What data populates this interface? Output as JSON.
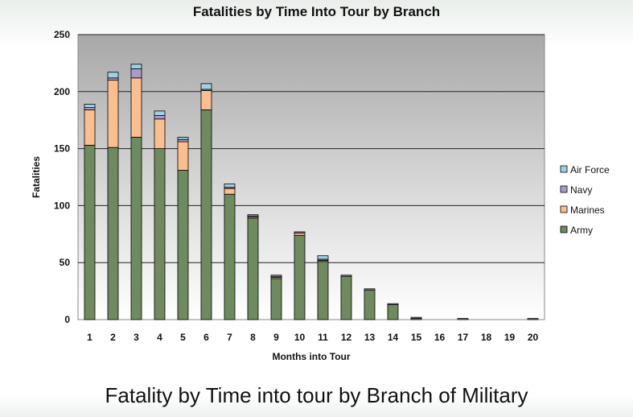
{
  "chart_data": {
    "type": "bar",
    "stacked": true,
    "title": "Fatalities by Time Into Tour by Branch",
    "xlabel": "Months into Tour",
    "ylabel": "Fatalities",
    "ylim": [
      0,
      250
    ],
    "yticks": [
      0,
      50,
      100,
      150,
      200,
      250
    ],
    "grid": true,
    "legend_position": "right",
    "categories": [
      "1",
      "2",
      "3",
      "4",
      "5",
      "6",
      "7",
      "8",
      "9",
      "10",
      "11",
      "12",
      "13",
      "14",
      "15",
      "16",
      "17",
      "18",
      "19",
      "20"
    ],
    "series": [
      {
        "name": "Army",
        "color": "#6e8a5e",
        "values": [
          153,
          151,
          160,
          150,
          131,
          184,
          110,
          89,
          36,
          74,
          51,
          38,
          26,
          13,
          1,
          0,
          1,
          0,
          0,
          1
        ]
      },
      {
        "name": "Marines",
        "color": "#fbbf8f",
        "values": [
          31,
          59,
          52,
          26,
          25,
          17,
          5,
          1,
          1,
          2,
          1,
          0,
          0,
          0,
          0,
          0,
          0,
          0,
          0,
          0
        ]
      },
      {
        "name": "Navy",
        "color": "#ab9cc6",
        "values": [
          2,
          2,
          8,
          3,
          2,
          1,
          1,
          1,
          1,
          1,
          1,
          1,
          1,
          1,
          1,
          0,
          0,
          0,
          0,
          0
        ]
      },
      {
        "name": "Air Force",
        "color": "#9fd1e6",
        "values": [
          3,
          5,
          4,
          4,
          2,
          5,
          3,
          1,
          1,
          0,
          3,
          0,
          0,
          0,
          0,
          0,
          0,
          0,
          0,
          0
        ]
      }
    ]
  },
  "caption": "Fatality by Time into tour by Branch of Military"
}
